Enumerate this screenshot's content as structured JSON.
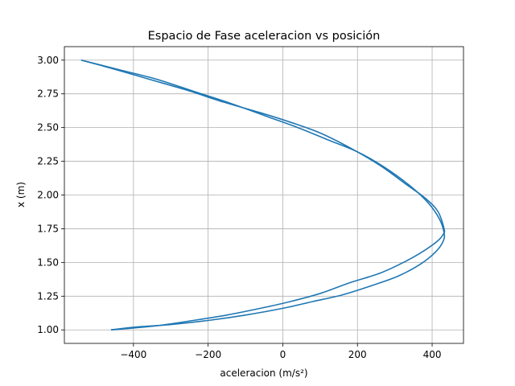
{
  "chart_data": {
    "type": "line",
    "title": "Espacio de Fase aceleracion vs posición",
    "xlabel": "aceleracion (m/s²)",
    "ylabel": "x (m)",
    "xlim": [
      -585,
      484
    ],
    "ylim": [
      0.9,
      3.1
    ],
    "xticks": [
      -400,
      -200,
      0,
      200,
      400
    ],
    "xtick_labels": [
      "−400",
      "−200",
      "0",
      "200",
      "400"
    ],
    "yticks": [
      1.0,
      1.25,
      1.5,
      1.75,
      2.0,
      2.25,
      2.5,
      2.75,
      3.0
    ],
    "ytick_labels": [
      "1.00",
      "1.25",
      "1.50",
      "1.75",
      "2.00",
      "2.25",
      "2.50",
      "2.75",
      "3.00"
    ],
    "grid": true,
    "line_color": "#1f77b4",
    "series": [
      {
        "x": [
          -460,
          -340,
          -240,
          -150,
          -60,
          20,
          100,
          180,
          260,
          330,
          380,
          415,
          430,
          432,
          415,
          380,
          330,
          260,
          180,
          100,
          20,
          -60,
          -160,
          -260,
          -360,
          -460,
          -540
        ],
        "y": [
          1.0,
          1.03,
          1.07,
          1.11,
          1.16,
          1.21,
          1.27,
          1.35,
          1.42,
          1.51,
          1.59,
          1.66,
          1.71,
          1.75,
          1.88,
          1.98,
          2.08,
          2.22,
          2.35,
          2.46,
          2.54,
          2.61,
          2.69,
          2.78,
          2.86,
          2.94,
          3.0
        ]
      },
      {
        "x": [
          -540,
          -440,
          -340,
          -240,
          -140,
          -40,
          40,
          120,
          200,
          270,
          340,
          390,
          420,
          432,
          430,
          410,
          370,
          310,
          240,
          160,
          80,
          0,
          -100,
          -200,
          -300,
          -400,
          -460
        ],
        "y": [
          3.0,
          2.93,
          2.86,
          2.77,
          2.68,
          2.58,
          2.5,
          2.41,
          2.32,
          2.21,
          2.07,
          1.94,
          1.82,
          1.72,
          1.66,
          1.58,
          1.49,
          1.4,
          1.33,
          1.26,
          1.21,
          1.16,
          1.11,
          1.07,
          1.04,
          1.02,
          1.0
        ]
      }
    ]
  }
}
